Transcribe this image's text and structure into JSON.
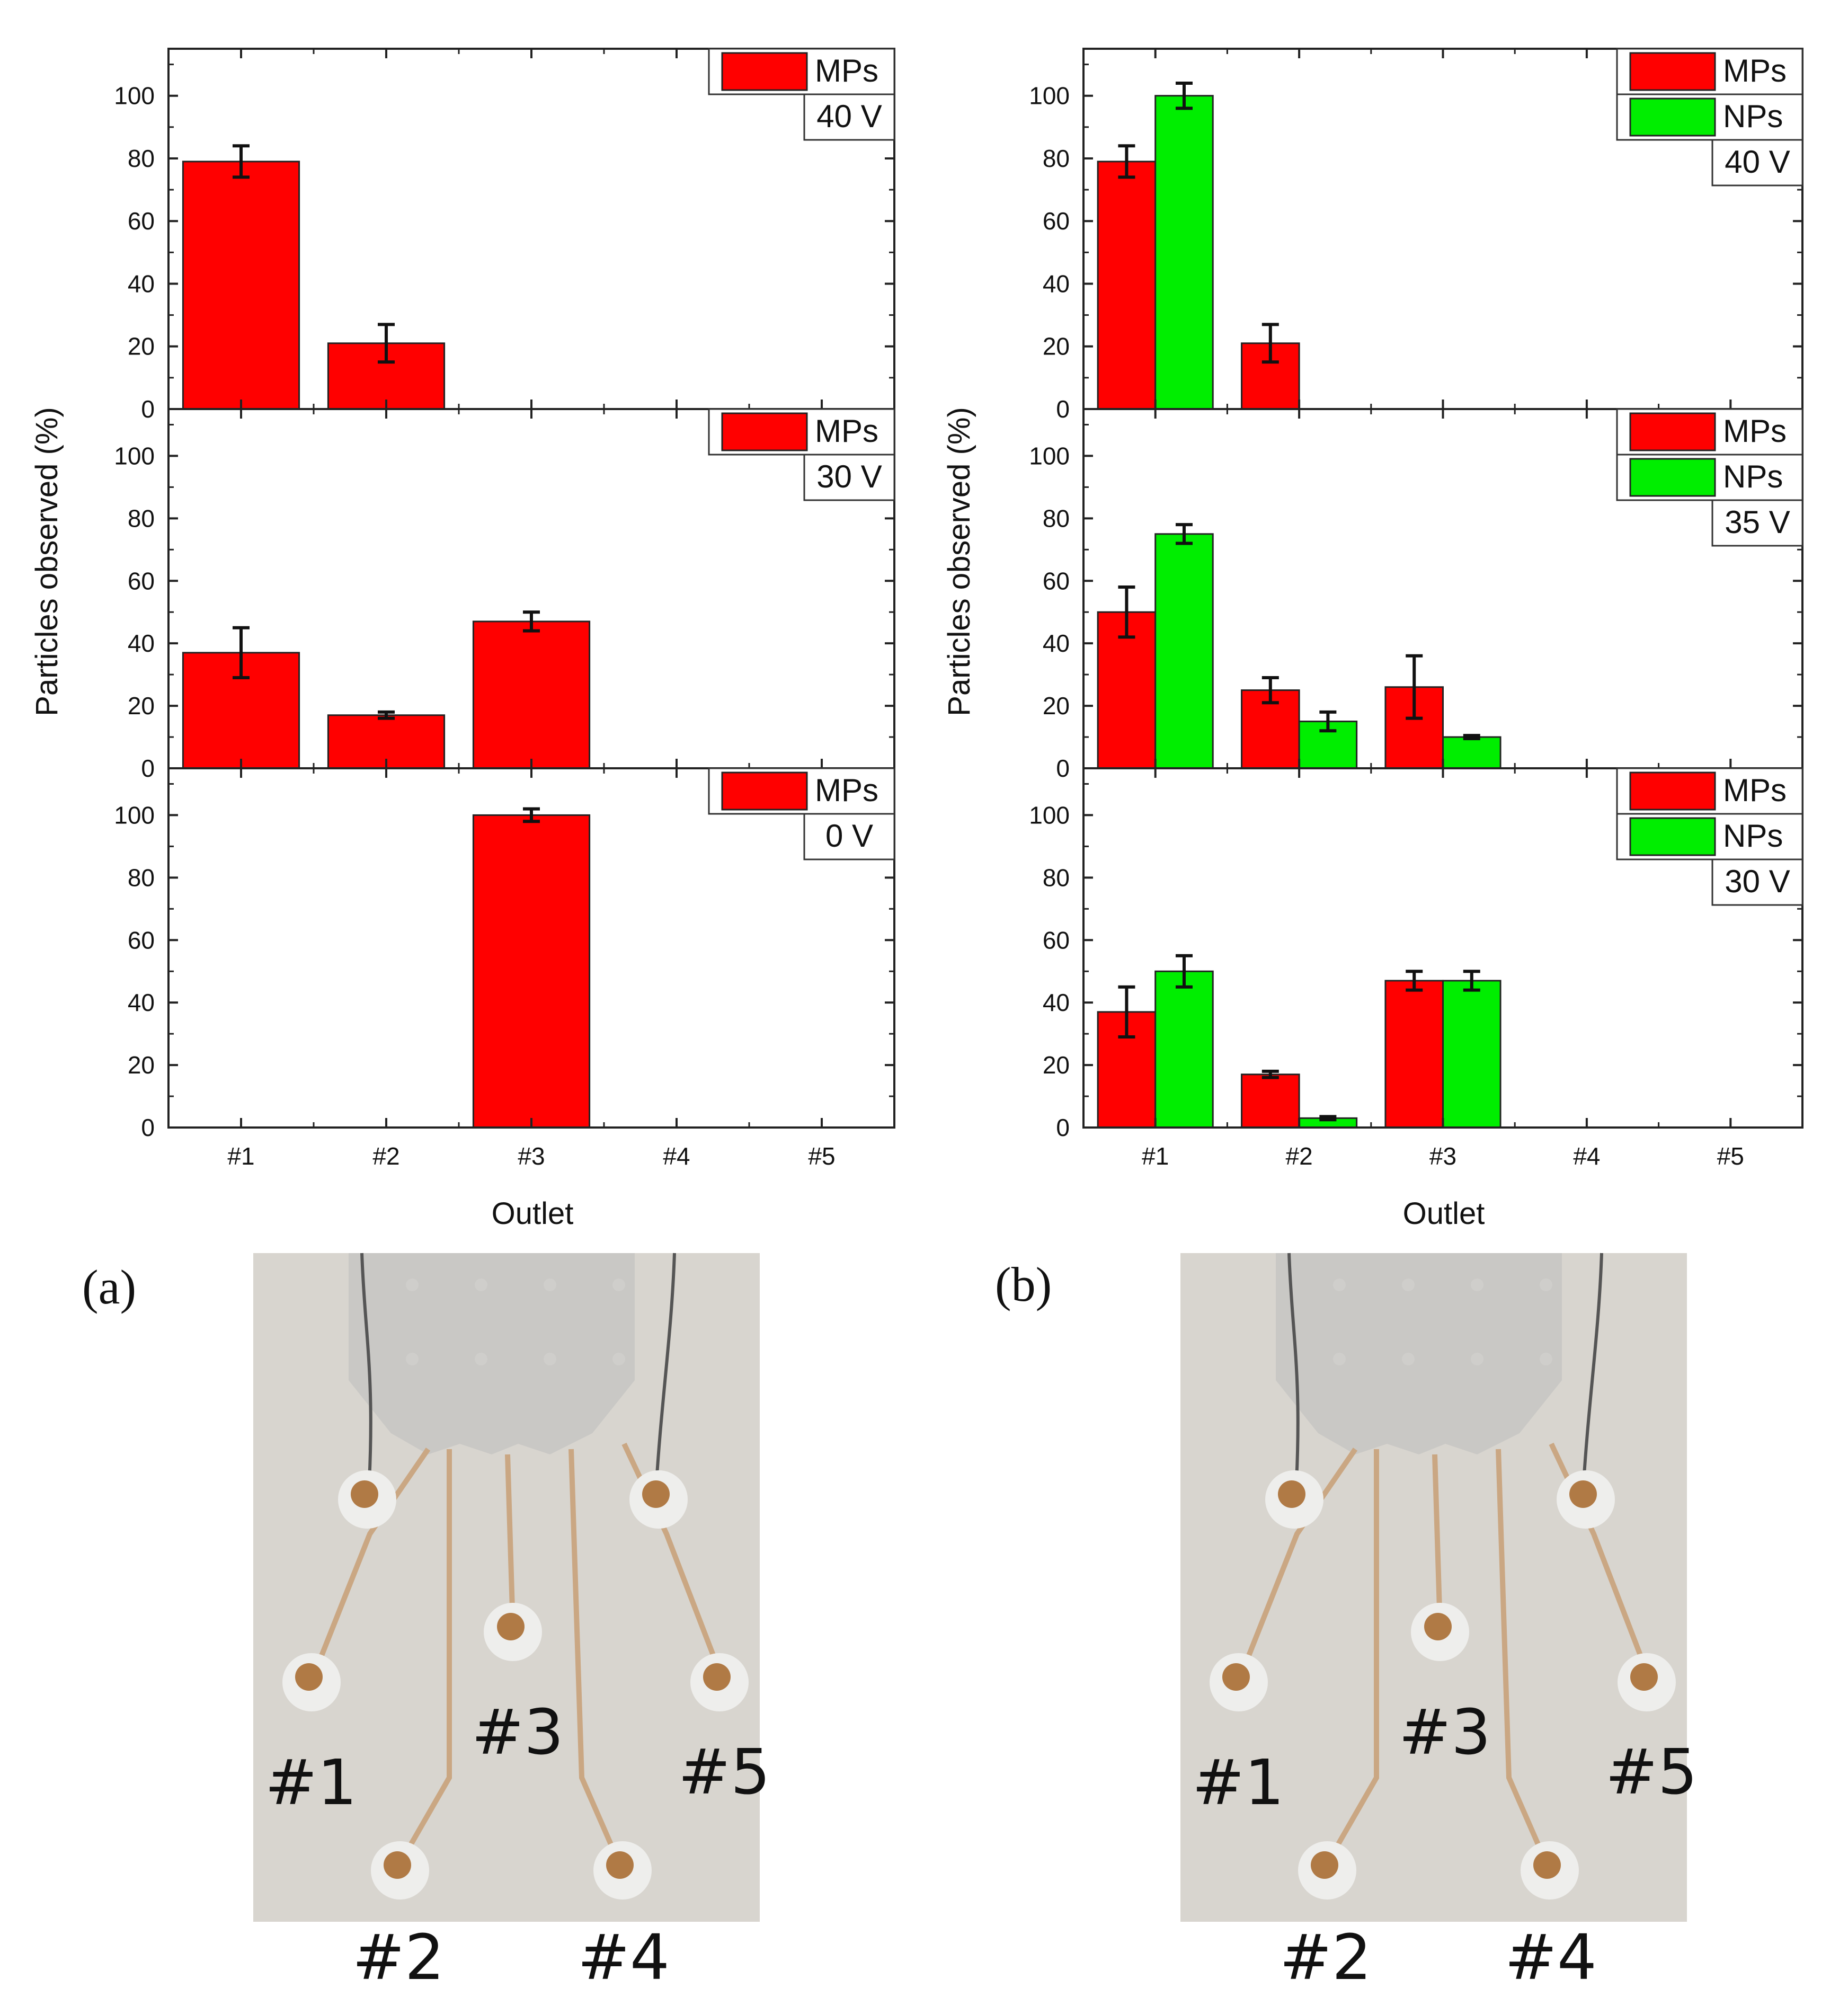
{
  "colors": {
    "MPs": "#ff0000",
    "NPs": "#00ee00",
    "photo_background": "#d8d5cf",
    "chip": "#c7c6c3",
    "outlet_well": "#b07a45"
  },
  "chart_data": [
    {
      "type": "bar",
      "panel": "a",
      "column": "a",
      "row": 0,
      "categories": [
        "#1",
        "#2",
        "#3",
        "#4",
        "#5"
      ],
      "series": [
        {
          "name": "MPs",
          "color_key": "MPs",
          "values": [
            79,
            21,
            0,
            0,
            0
          ],
          "errors": [
            5,
            6,
            0,
            0,
            0
          ]
        }
      ],
      "voltage_label": "40 V",
      "ylim": [
        0,
        115
      ],
      "yticks": [
        0,
        20,
        40,
        60,
        80,
        100
      ]
    },
    {
      "type": "bar",
      "panel": "a",
      "column": "a",
      "row": 1,
      "categories": [
        "#1",
        "#2",
        "#3",
        "#4",
        "#5"
      ],
      "series": [
        {
          "name": "MPs",
          "color_key": "MPs",
          "values": [
            37,
            17,
            47,
            0,
            0
          ],
          "errors": [
            8,
            1,
            3,
            0,
            0
          ]
        }
      ],
      "voltage_label": "30 V",
      "ylim": [
        0,
        115
      ],
      "yticks": [
        0,
        20,
        40,
        60,
        80,
        100
      ]
    },
    {
      "type": "bar",
      "panel": "a",
      "column": "a",
      "row": 2,
      "categories": [
        "#1",
        "#2",
        "#3",
        "#4",
        "#5"
      ],
      "series": [
        {
          "name": "MPs",
          "color_key": "MPs",
          "values": [
            0,
            0,
            100,
            0,
            0
          ],
          "errors": [
            0,
            0,
            2,
            0,
            0
          ]
        }
      ],
      "voltage_label": "0 V",
      "ylim": [
        0,
        115
      ],
      "yticks": [
        0,
        20,
        40,
        60,
        80,
        100
      ]
    },
    {
      "type": "bar",
      "panel": "b",
      "column": "b",
      "row": 0,
      "categories": [
        "#1",
        "#2",
        "#3",
        "#4",
        "#5"
      ],
      "series": [
        {
          "name": "MPs",
          "color_key": "MPs",
          "values": [
            79,
            21,
            0,
            0,
            0
          ],
          "errors": [
            5,
            6,
            0,
            0,
            0
          ]
        },
        {
          "name": "NPs",
          "color_key": "NPs",
          "values": [
            100,
            0,
            0,
            0,
            0
          ],
          "errors": [
            4,
            0,
            0,
            0,
            0
          ]
        }
      ],
      "voltage_label": "40 V",
      "ylim": [
        0,
        115
      ],
      "yticks": [
        0,
        20,
        40,
        60,
        80,
        100
      ]
    },
    {
      "type": "bar",
      "panel": "b",
      "column": "b",
      "row": 1,
      "categories": [
        "#1",
        "#2",
        "#3",
        "#4",
        "#5"
      ],
      "series": [
        {
          "name": "MPs",
          "color_key": "MPs",
          "values": [
            50,
            25,
            26,
            0,
            0
          ],
          "errors": [
            8,
            4,
            10,
            0,
            0
          ]
        },
        {
          "name": "NPs",
          "color_key": "NPs",
          "values": [
            75,
            15,
            10,
            0,
            0
          ],
          "errors": [
            3,
            3,
            0.5,
            0,
            0
          ]
        }
      ],
      "voltage_label": "35 V",
      "ylim": [
        0,
        115
      ],
      "yticks": [
        0,
        20,
        40,
        60,
        80,
        100
      ]
    },
    {
      "type": "bar",
      "panel": "b",
      "column": "b",
      "row": 2,
      "categories": [
        "#1",
        "#2",
        "#3",
        "#4",
        "#5"
      ],
      "series": [
        {
          "name": "MPs",
          "color_key": "MPs",
          "values": [
            37,
            17,
            47,
            0,
            0
          ],
          "errors": [
            8,
            1,
            3,
            0,
            0
          ]
        },
        {
          "name": "NPs",
          "color_key": "NPs",
          "values": [
            50,
            3,
            47,
            0,
            0
          ],
          "errors": [
            5,
            0.5,
            3,
            0,
            0
          ]
        }
      ],
      "voltage_label": "30 V",
      "ylim": [
        0,
        115
      ],
      "yticks": [
        0,
        20,
        40,
        60,
        80,
        100
      ]
    }
  ],
  "axes": {
    "ylabel": "Particles observed (%)",
    "xlabel": "Outlet"
  },
  "panels": {
    "a_label": "(a)",
    "b_label": "(b)"
  },
  "photos": {
    "outlet_labels": [
      "#1",
      "#2",
      "#3",
      "#4",
      "#5"
    ]
  }
}
